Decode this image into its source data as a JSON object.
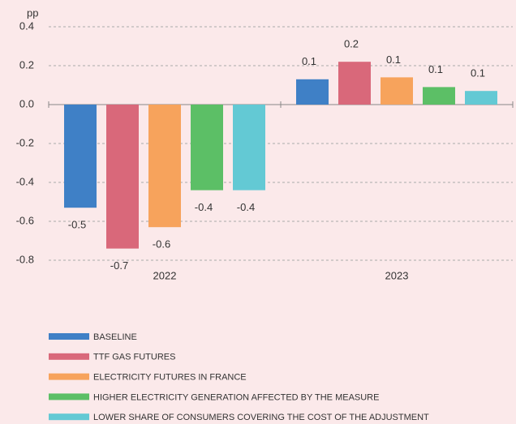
{
  "chart_data": {
    "type": "bar",
    "y_label": "pp",
    "categories": [
      "2022",
      "2023"
    ],
    "series": [
      {
        "name": "BASELINE",
        "color": "#3f80c6",
        "values": [
          -0.53,
          0.13
        ],
        "value_labels": [
          "-0.5",
          "0.1"
        ]
      },
      {
        "name": "TTF GAS FUTURES",
        "color": "#d9687a",
        "values": [
          -0.74,
          0.22
        ],
        "value_labels": [
          "-0.7",
          "0.2"
        ]
      },
      {
        "name": "ELECTRICITY FUTURES IN FRANCE",
        "color": "#f7a35c",
        "values": [
          -0.63,
          0.14
        ],
        "value_labels": [
          "-0.6",
          "0.1"
        ]
      },
      {
        "name": "HIGHER ELECTRICITY GENERATION AFFECTED BY THE MEASURE",
        "color": "#5cbf66",
        "values": [
          -0.44,
          0.09
        ],
        "value_labels": [
          "-0.4",
          "0.1"
        ]
      },
      {
        "name": "LOWER SHARE OF CONSUMERS COVERING THE COST OF THE ADJUSTMENT",
        "color": "#63c9d4",
        "values": [
          -0.44,
          0.07
        ],
        "value_labels": [
          "-0.4",
          "0.1"
        ]
      }
    ],
    "ylim": [
      -0.8,
      0.4
    ],
    "yticks": [
      -0.8,
      -0.6,
      -0.4,
      -0.2,
      {
        "value": 0,
        "label": "0.0"
      },
      0.2,
      0.4
    ],
    "grid": true
  }
}
